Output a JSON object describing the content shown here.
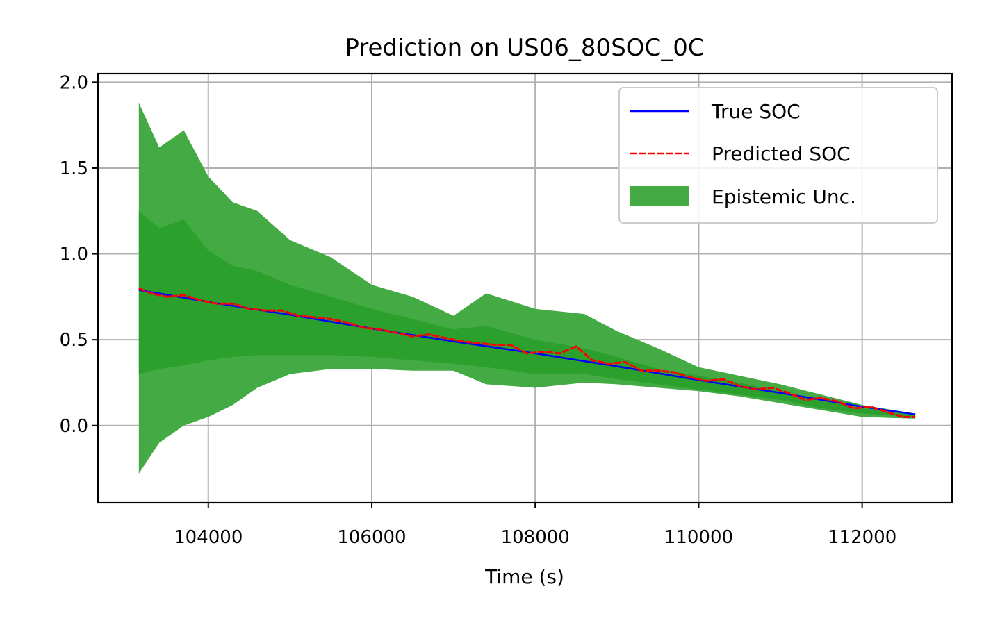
{
  "chart_data": {
    "type": "line",
    "title": "Prediction on US06_80SOC_0C",
    "xlabel": "Time (s)",
    "ylabel": "",
    "xlim": [
      102650,
      113100
    ],
    "ylim": [
      -0.45,
      2.05
    ],
    "grid": true,
    "legend_position": "top-right",
    "xticks": [
      104000,
      106000,
      108000,
      110000,
      112000
    ],
    "xtick_labels": [
      "104000",
      "106000",
      "108000",
      "110000",
      "112000"
    ],
    "yticks": [
      0.0,
      0.5,
      1.0,
      1.5,
      2.0
    ],
    "ytick_labels": [
      "0.0",
      "0.5",
      "1.0",
      "1.5",
      "2.0"
    ],
    "colors": {
      "true_soc": "#0000ff",
      "predicted_soc": "#ff0000",
      "band_outer": "#44aa44",
      "band_inner": "#2ca02c"
    },
    "series": [
      {
        "name": "True SOC",
        "style": "solid",
        "x": [
          103150,
          104000,
          105000,
          106000,
          107000,
          108000,
          109000,
          110000,
          111000,
          112000,
          112650
        ],
        "y": [
          0.79,
          0.72,
          0.645,
          0.565,
          0.49,
          0.42,
          0.345,
          0.265,
          0.19,
          0.11,
          0.065
        ]
      },
      {
        "name": "Predicted SOC",
        "style": "dashed",
        "x": [
          103150,
          103300,
          103500,
          103700,
          103900,
          104100,
          104300,
          104500,
          104700,
          104900,
          105100,
          105300,
          105500,
          105700,
          105900,
          106100,
          106300,
          106500,
          106700,
          106900,
          107100,
          107300,
          107500,
          107700,
          107900,
          108100,
          108300,
          108500,
          108700,
          108900,
          109100,
          109300,
          109500,
          109700,
          109900,
          110100,
          110300,
          110500,
          110700,
          110900,
          111100,
          111300,
          111500,
          111700,
          111900,
          112100,
          112300,
          112500,
          112650
        ],
        "y": [
          0.8,
          0.77,
          0.75,
          0.76,
          0.73,
          0.71,
          0.71,
          0.68,
          0.67,
          0.67,
          0.64,
          0.63,
          0.62,
          0.6,
          0.57,
          0.56,
          0.54,
          0.52,
          0.53,
          0.51,
          0.49,
          0.48,
          0.47,
          0.47,
          0.42,
          0.43,
          0.42,
          0.46,
          0.38,
          0.36,
          0.37,
          0.32,
          0.32,
          0.31,
          0.28,
          0.26,
          0.27,
          0.23,
          0.21,
          0.22,
          0.19,
          0.15,
          0.16,
          0.14,
          0.1,
          0.11,
          0.08,
          0.05,
          0.05
        ]
      }
    ],
    "band": {
      "name": "Epistemic Unc.",
      "x": [
        103150,
        103400,
        103700,
        104000,
        104300,
        104600,
        105000,
        105500,
        106000,
        106500,
        107000,
        107400,
        108000,
        108600,
        109000,
        109500,
        110000,
        110500,
        111000,
        111500,
        112000,
        112650
      ],
      "outer_upper": [
        1.88,
        1.62,
        1.72,
        1.45,
        1.3,
        1.25,
        1.08,
        0.98,
        0.82,
        0.75,
        0.64,
        0.77,
        0.68,
        0.65,
        0.55,
        0.45,
        0.34,
        0.29,
        0.24,
        0.18,
        0.12,
        0.07
      ],
      "outer_lower": [
        -0.28,
        -0.1,
        0.0,
        0.05,
        0.12,
        0.22,
        0.3,
        0.33,
        0.33,
        0.32,
        0.32,
        0.24,
        0.22,
        0.25,
        0.24,
        0.22,
        0.2,
        0.17,
        0.13,
        0.09,
        0.05,
        0.04
      ],
      "inner_upper": [
        1.25,
        1.15,
        1.2,
        1.02,
        0.93,
        0.9,
        0.82,
        0.75,
        0.68,
        0.62,
        0.56,
        0.58,
        0.5,
        0.45,
        0.4,
        0.33,
        0.29,
        0.25,
        0.2,
        0.15,
        0.1,
        0.06
      ],
      "inner_lower": [
        0.3,
        0.33,
        0.35,
        0.38,
        0.4,
        0.41,
        0.41,
        0.41,
        0.4,
        0.38,
        0.36,
        0.34,
        0.3,
        0.3,
        0.27,
        0.24,
        0.21,
        0.18,
        0.15,
        0.1,
        0.07,
        0.05
      ]
    }
  }
}
